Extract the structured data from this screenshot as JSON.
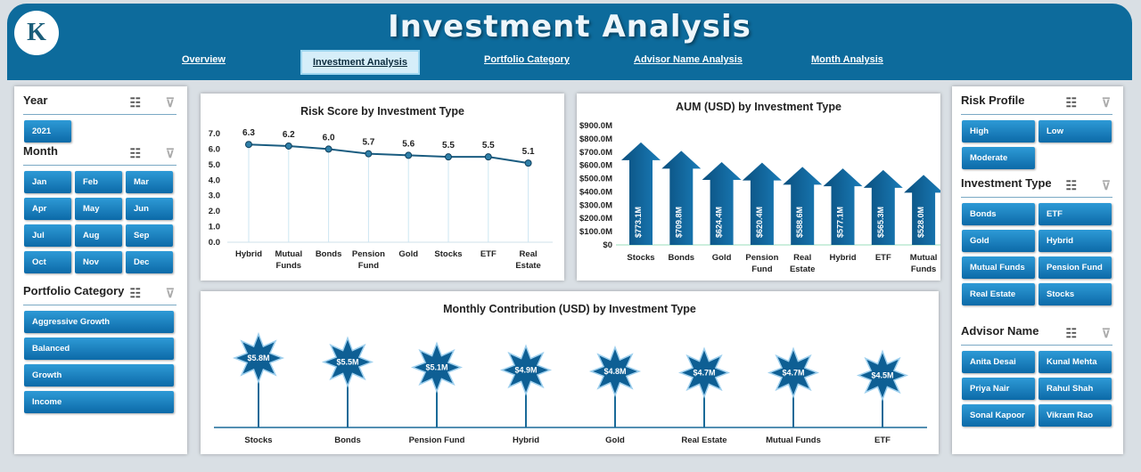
{
  "header": {
    "title": "Investment  Analysis",
    "logo_text": "K",
    "nav": [
      {
        "label": "Overview",
        "active": false
      },
      {
        "label": "Investment  Analysis",
        "active": true
      },
      {
        "label": "Portfolio Category",
        "active": false
      },
      {
        "label": "Advisor Name Analysis",
        "active": false
      },
      {
        "label": "Month Analysis",
        "active": false
      }
    ]
  },
  "colors": {
    "header": "#0d6b9c",
    "button": "#1780c0",
    "line": "#1a5c80",
    "arrow": "#0d5f93"
  },
  "icons": {
    "multi_select": "multi-select-icon",
    "clear_filter": "clear-filter-icon"
  },
  "left": {
    "year": {
      "title": "Year",
      "items": [
        "2021"
      ]
    },
    "month": {
      "title": "Month",
      "items": [
        "Jan",
        "Feb",
        "Mar",
        "Apr",
        "May",
        "Jun",
        "Jul",
        "Aug",
        "Sep",
        "Oct",
        "Nov",
        "Dec"
      ]
    },
    "portfolio": {
      "title": "Portfolio Category",
      "items": [
        "Aggressive Growth",
        "Balanced",
        "Growth",
        "Income"
      ]
    }
  },
  "right": {
    "risk": {
      "title": "Risk Profile",
      "items": [
        "High",
        "Low",
        "Moderate"
      ]
    },
    "type": {
      "title": "Investment Type",
      "items": [
        "Bonds",
        "ETF",
        "Gold",
        "Hybrid",
        "Mutual Funds",
        "Pension Fund",
        "Real Estate",
        "Stocks"
      ]
    },
    "advisor": {
      "title": "Advisor Name",
      "items": [
        "Anita Desai",
        "Kunal Mehta",
        "Priya Nair",
        "Rahul Shah",
        "Sonal Kapoor",
        "Vikram Rao"
      ]
    }
  },
  "chart_data": [
    {
      "type": "line",
      "title": "Risk Score by Investment Type",
      "categories": [
        "Hybrid",
        "Mutual Funds",
        "Bonds",
        "Pension Fund",
        "Gold",
        "Stocks",
        "ETF",
        "Real Estate"
      ],
      "values": [
        6.3,
        6.2,
        6.0,
        5.7,
        5.6,
        5.5,
        5.5,
        5.1
      ],
      "labels": [
        "6.3",
        "6.2",
        "6.0",
        "5.7",
        "5.6",
        "5.5",
        "5.5",
        "5.1"
      ],
      "ylim": [
        0,
        7
      ],
      "yticks": [
        "0.0",
        "1.0",
        "2.0",
        "3.0",
        "4.0",
        "5.0",
        "6.0",
        "7.0"
      ]
    },
    {
      "type": "bar",
      "title": "AUM (USD) by Investment Type",
      "categories": [
        "Stocks",
        "Bonds",
        "Gold",
        "Pension Fund",
        "Real Estate",
        "Hybrid",
        "ETF",
        "Mutual Funds"
      ],
      "values": [
        773.1,
        709.8,
        624.4,
        620.4,
        588.6,
        577.1,
        565.3,
        528.0
      ],
      "labels": [
        "$773.1M",
        "$709.8M",
        "$624.4M",
        "$620.4M",
        "$588.6M",
        "$577.1M",
        "$565.3M",
        "$528.0M"
      ],
      "ylim": [
        0,
        900
      ],
      "yticks": [
        "$0",
        "$100.0M",
        "$200.0M",
        "$300.0M",
        "$400.0M",
        "$500.0M",
        "$600.0M",
        "$700.0M",
        "$800.0M",
        "$900.0M"
      ]
    },
    {
      "type": "bar",
      "title": "Monthly Contribution (USD) by Investment Type",
      "categories": [
        "Stocks",
        "Bonds",
        "Pension Fund",
        "Hybrid",
        "Gold",
        "Real Estate",
        "Mutual Funds",
        "ETF"
      ],
      "values": [
        5.8,
        5.5,
        5.1,
        4.9,
        4.8,
        4.7,
        4.7,
        4.5
      ],
      "labels": [
        "$5.8M",
        "$5.5M",
        "$5.1M",
        "$4.9M",
        "$4.8M",
        "$4.7M",
        "$4.7M",
        "$4.5M"
      ]
    }
  ]
}
